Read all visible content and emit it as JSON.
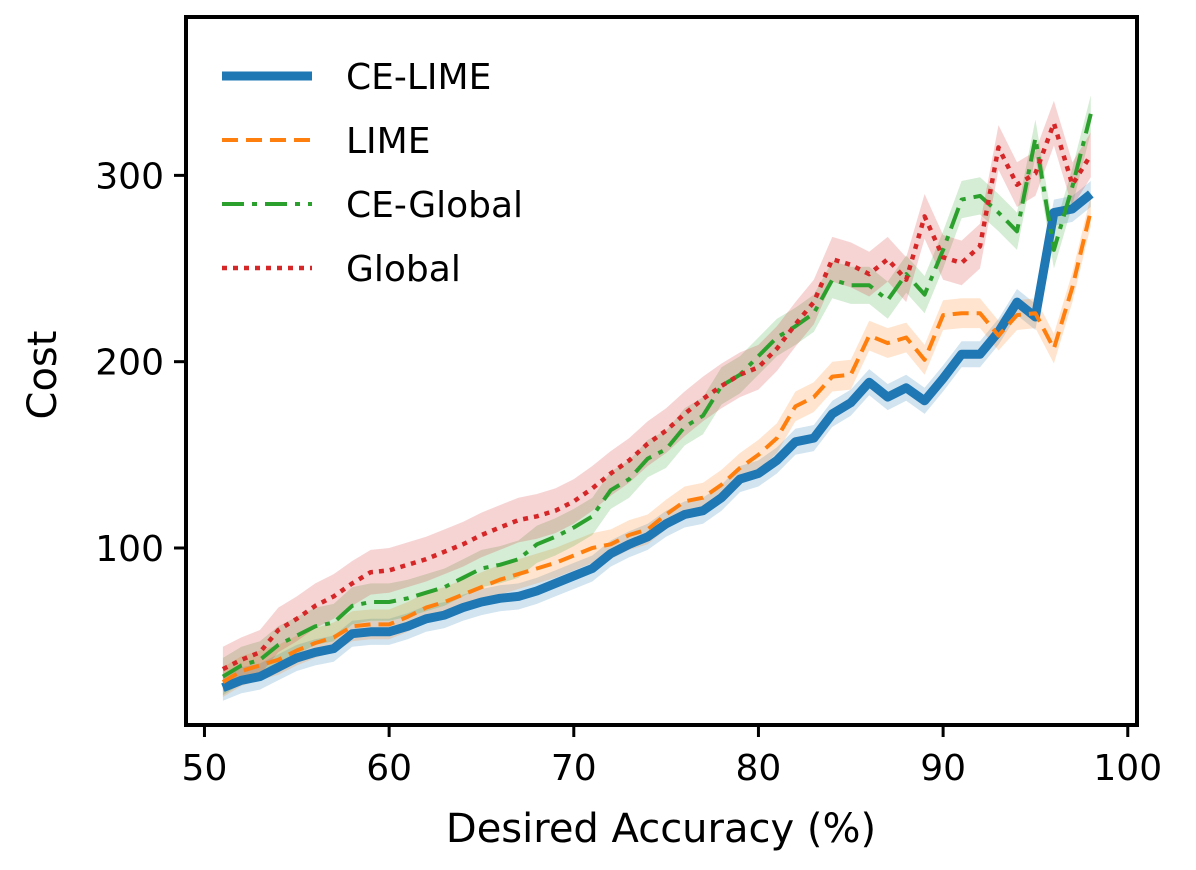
{
  "chart_data": {
    "type": "line",
    "title": "",
    "xlabel": "Desired Accuracy (%)",
    "ylabel": "Cost",
    "xlim": [
      49,
      100.5
    ],
    "ylim": [
      5,
      385
    ],
    "x_ticks": [
      50,
      60,
      70,
      80,
      90,
      100
    ],
    "y_ticks": [
      100,
      200,
      300
    ],
    "legend_position": "top-left",
    "x": [
      51,
      52,
      53,
      54,
      55,
      56,
      57,
      58,
      59,
      60,
      61,
      62,
      63,
      64,
      65,
      66,
      67,
      68,
      69,
      70,
      71,
      72,
      73,
      74,
      75,
      76,
      77,
      78,
      79,
      80,
      81,
      82,
      83,
      84,
      85,
      86,
      87,
      88,
      89,
      90,
      91,
      92,
      93,
      94,
      95,
      96,
      97,
      98
    ],
    "series": [
      {
        "name": "CE-LIME",
        "color": "#1f77b4",
        "style": "solid",
        "values": [
          25,
          29,
          31,
          36,
          41,
          44,
          46,
          54,
          55,
          55,
          58,
          62,
          64,
          68,
          71,
          73,
          74,
          77,
          81,
          85,
          89,
          97,
          102,
          106,
          113,
          118,
          120,
          127,
          137,
          140,
          147,
          157,
          159,
          172,
          178,
          189,
          181,
          186,
          179,
          191,
          204,
          204,
          216,
          232,
          224,
          280,
          282,
          290
        ],
        "band": 7
      },
      {
        "name": "LIME",
        "color": "#ff7f0e",
        "style": "dashed",
        "values": [
          28,
          34,
          37,
          40,
          45,
          49,
          52,
          58,
          59,
          59,
          63,
          68,
          71,
          75,
          79,
          83,
          86,
          89,
          92,
          96,
          100,
          102,
          107,
          110,
          118,
          125,
          127,
          134,
          143,
          150,
          159,
          176,
          181,
          192,
          193,
          214,
          210,
          213,
          201,
          225,
          226,
          226,
          214,
          225,
          226,
          207,
          240,
          281
        ],
        "band": 8
      },
      {
        "name": "CE-Global",
        "color": "#2ca02c",
        "style": "dashdot",
        "values": [
          31,
          37,
          40,
          48,
          53,
          58,
          60,
          69,
          71,
          71,
          73,
          76,
          79,
          84,
          89,
          91,
          94,
          102,
          106,
          111,
          117,
          131,
          137,
          148,
          153,
          165,
          171,
          187,
          193,
          203,
          213,
          219,
          226,
          244,
          241,
          241,
          233,
          247,
          236,
          260,
          287,
          289,
          280,
          270,
          320,
          260,
          294,
          333
        ],
        "band": 10
      },
      {
        "name": "Global",
        "color": "#d62728",
        "style": "dotted",
        "values": [
          35,
          40,
          44,
          56,
          62,
          69,
          74,
          81,
          87,
          88,
          91,
          94,
          98,
          102,
          107,
          111,
          115,
          117,
          120,
          125,
          132,
          140,
          147,
          156,
          163,
          172,
          180,
          187,
          193,
          197,
          207,
          220,
          232,
          255,
          252,
          247,
          255,
          244,
          278,
          256,
          253,
          262,
          315,
          295,
          301,
          328,
          295,
          311
        ],
        "band": 12
      }
    ]
  }
}
